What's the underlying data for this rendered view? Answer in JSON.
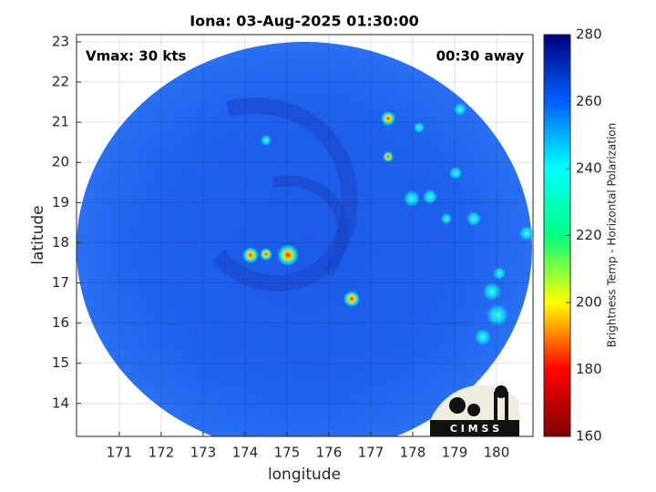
{
  "chart_data": {
    "type": "image",
    "title": "Iona: 03-Aug-2025 01:30:00",
    "x_label": "longitude",
    "y_label": "latitude",
    "annotations": [
      "Vmax: 30 kts",
      "00:30 away"
    ],
    "logo": "C I M S S",
    "xlim": [
      169.98,
      180.87
    ],
    "xticks": [
      171,
      172,
      173,
      174,
      175,
      176,
      177,
      178,
      179,
      180
    ],
    "ylim": [
      13.18,
      23.18
    ],
    "yticks": [
      14,
      15,
      16,
      17,
      18,
      19,
      20,
      21,
      22,
      23
    ],
    "grid": true,
    "colorbar": {
      "label": "Brightness Temp - Horizontal Polarization",
      "lim": [
        160,
        280
      ],
      "ticks": [
        160,
        180,
        200,
        220,
        240,
        260,
        280
      ],
      "colormap": [
        "#7f0000",
        "#ff0000",
        "#ffff00",
        "#00ff80",
        "#00ffff",
        "#0060ff",
        "#00007f"
      ]
    }
  }
}
